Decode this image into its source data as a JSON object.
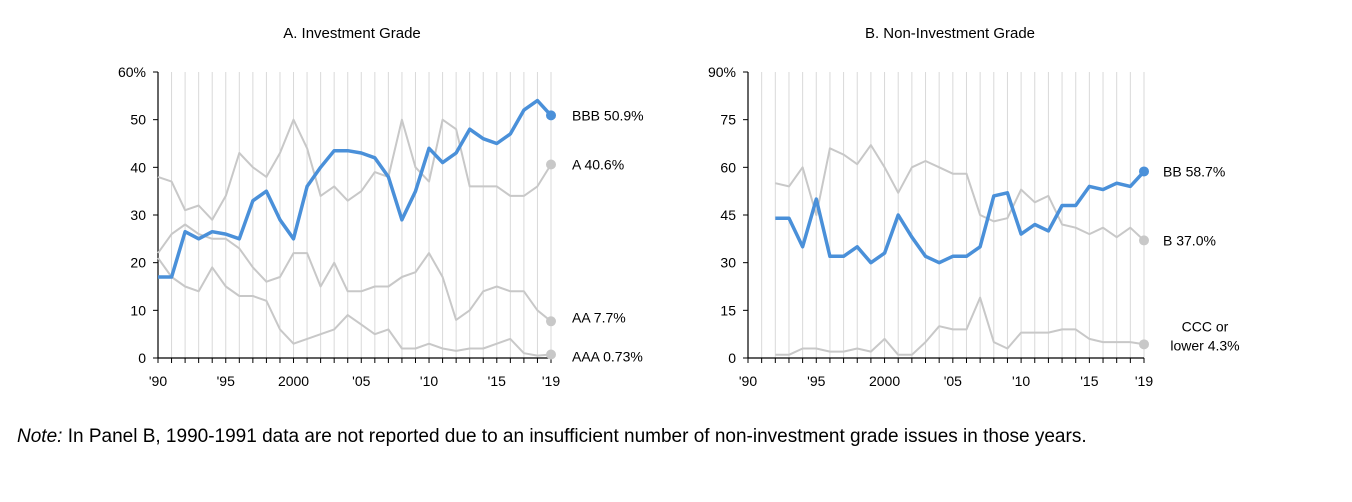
{
  "note": {
    "label": "Note:",
    "text": "In Panel B, 1990-1991 data are not reported due to an insufficient number of non-investment grade issues in those years."
  },
  "colors": {
    "highlight": "#4a90d9",
    "muted": "#c8c8c8",
    "grid": "#d9d9d9"
  },
  "chart_data": [
    {
      "type": "line",
      "title": "A. Investment Grade",
      "x_tick_labels": [
        "'90",
        "'95",
        "2000",
        "'05",
        "'10",
        "'15",
        "'19"
      ],
      "x_ticks": [
        1990,
        1995,
        2000,
        2005,
        2010,
        2015,
        2019
      ],
      "y_tick_labels": [
        "0",
        "10",
        "20",
        "30",
        "40",
        "50",
        "60%"
      ],
      "y_ticks": [
        0,
        10,
        20,
        30,
        40,
        50,
        60
      ],
      "xlim": [
        1990,
        2019
      ],
      "ylim": [
        0,
        60
      ],
      "grid": "vertical",
      "series": [
        {
          "name": "BBB",
          "end_label": "BBB 50.9%",
          "highlight": true,
          "x": [
            1990,
            1991,
            1992,
            1993,
            1994,
            1995,
            1996,
            1997,
            1998,
            1999,
            2000,
            2001,
            2002,
            2003,
            2004,
            2005,
            2006,
            2007,
            2008,
            2009,
            2010,
            2011,
            2012,
            2013,
            2014,
            2015,
            2016,
            2017,
            2018,
            2019
          ],
          "values": [
            17,
            17,
            26.5,
            25,
            26.5,
            26,
            25,
            33,
            35,
            29,
            25,
            36,
            40,
            43.5,
            43.5,
            43,
            42,
            38,
            29,
            35,
            44,
            41,
            43,
            48,
            46,
            45,
            47,
            52,
            54,
            50.9
          ]
        },
        {
          "name": "A",
          "end_label": "A 40.6%",
          "highlight": false,
          "x": [
            1990,
            1991,
            1992,
            1993,
            1994,
            1995,
            1996,
            1997,
            1998,
            1999,
            2000,
            2001,
            2002,
            2003,
            2004,
            2005,
            2006,
            2007,
            2008,
            2009,
            2010,
            2011,
            2012,
            2013,
            2014,
            2015,
            2016,
            2017,
            2018,
            2019
          ],
          "values": [
            38,
            37,
            31,
            32,
            29,
            34,
            43,
            40,
            38,
            43,
            50,
            44,
            34,
            36,
            33,
            35,
            39,
            38,
            50,
            40,
            37,
            50,
            48,
            36,
            36,
            36,
            34,
            34,
            36,
            40.6
          ]
        },
        {
          "name": "AA",
          "end_label": "AA 7.7%",
          "highlight": false,
          "x": [
            1990,
            1991,
            1992,
            1993,
            1994,
            1995,
            1996,
            1997,
            1998,
            1999,
            2000,
            2001,
            2002,
            2003,
            2004,
            2005,
            2006,
            2007,
            2008,
            2009,
            2010,
            2011,
            2012,
            2013,
            2014,
            2015,
            2016,
            2017,
            2018,
            2019
          ],
          "values": [
            22,
            26,
            28,
            26,
            25,
            25,
            23,
            19,
            16,
            17,
            22,
            22,
            15,
            20,
            14,
            14,
            15,
            15,
            17,
            18,
            22,
            17,
            8,
            10,
            14,
            15,
            14,
            14,
            10,
            7.7
          ]
        },
        {
          "name": "AAA",
          "end_label": "AAA 0.73%",
          "highlight": false,
          "x": [
            1990,
            1991,
            1992,
            1993,
            1994,
            1995,
            1996,
            1997,
            1998,
            1999,
            2000,
            2001,
            2002,
            2003,
            2004,
            2005,
            2006,
            2007,
            2008,
            2009,
            2010,
            2011,
            2012,
            2013,
            2014,
            2015,
            2016,
            2017,
            2018,
            2019
          ],
          "values": [
            21,
            17,
            15,
            14,
            19,
            15,
            13,
            13,
            12,
            6,
            3,
            4,
            5,
            6,
            9,
            7,
            5,
            6,
            2,
            2,
            3,
            2,
            1.5,
            2,
            2,
            3,
            4,
            1,
            0.5,
            0.73
          ]
        }
      ]
    },
    {
      "type": "line",
      "title": "B. Non-Investment Grade",
      "x_tick_labels": [
        "'90",
        "'95",
        "2000",
        "'05",
        "'10",
        "'15",
        "'19"
      ],
      "x_ticks": [
        1990,
        1995,
        2000,
        2005,
        2010,
        2015,
        2019
      ],
      "y_tick_labels": [
        "0",
        "15",
        "30",
        "45",
        "60",
        "75",
        "90%"
      ],
      "y_ticks": [
        0,
        15,
        30,
        45,
        60,
        75,
        90
      ],
      "xlim": [
        1990,
        2019
      ],
      "ylim": [
        0,
        90
      ],
      "grid": "vertical",
      "series": [
        {
          "name": "BB",
          "end_label": "BB 58.7%",
          "highlight": true,
          "x": [
            1992,
            1993,
            1994,
            1995,
            1996,
            1997,
            1998,
            1999,
            2000,
            2001,
            2002,
            2003,
            2004,
            2005,
            2006,
            2007,
            2008,
            2009,
            2010,
            2011,
            2012,
            2013,
            2014,
            2015,
            2016,
            2017,
            2018,
            2019
          ],
          "values": [
            44,
            44,
            35,
            50,
            32,
            32,
            35,
            30,
            33,
            45,
            38,
            32,
            30,
            32,
            32,
            35,
            51,
            52,
            39,
            42,
            40,
            48,
            48,
            54,
            53,
            55,
            54,
            58.7
          ]
        },
        {
          "name": "B",
          "end_label": "B 37.0%",
          "highlight": false,
          "x": [
            1992,
            1993,
            1994,
            1995,
            1996,
            1997,
            1998,
            1999,
            2000,
            2001,
            2002,
            2003,
            2004,
            2005,
            2006,
            2007,
            2008,
            2009,
            2010,
            2011,
            2012,
            2013,
            2014,
            2015,
            2016,
            2017,
            2018,
            2019
          ],
          "values": [
            55,
            54,
            60,
            45,
            66,
            64,
            61,
            67,
            60,
            52,
            60,
            62,
            60,
            58,
            58,
            45,
            43,
            44,
            53,
            49,
            51,
            42,
            41,
            39,
            41,
            38,
            41,
            37.0
          ]
        },
        {
          "name": "CCC or lower",
          "end_label": "CCC or lower 4.3%",
          "end_label_lines": [
            "CCC or",
            "lower 4.3%"
          ],
          "highlight": false,
          "x": [
            1992,
            1993,
            1994,
            1995,
            1996,
            1997,
            1998,
            1999,
            2000,
            2001,
            2002,
            2003,
            2004,
            2005,
            2006,
            2007,
            2008,
            2009,
            2010,
            2011,
            2012,
            2013,
            2014,
            2015,
            2016,
            2017,
            2018,
            2019
          ],
          "values": [
            1,
            1,
            3,
            3,
            2,
            2,
            3,
            2,
            6,
            1,
            1,
            5,
            10,
            9,
            9,
            19,
            5,
            3,
            8,
            8,
            8,
            9,
            9,
            6,
            5,
            5,
            5,
            4.3
          ]
        }
      ]
    }
  ]
}
